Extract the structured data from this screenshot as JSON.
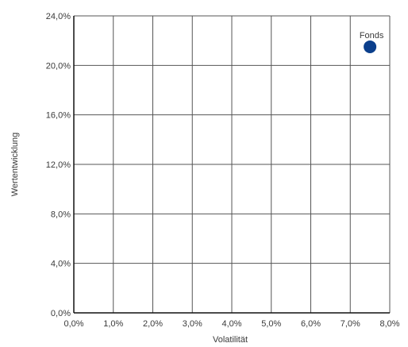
{
  "chart_data": {
    "type": "scatter",
    "title": "",
    "xlabel": "Volatilität",
    "ylabel": "Wertentwicklung",
    "xlim": [
      0,
      8
    ],
    "ylim": [
      0,
      24
    ],
    "x_ticks": [
      0,
      1,
      2,
      3,
      4,
      5,
      6,
      7,
      8
    ],
    "y_ticks": [
      0,
      4,
      8,
      12,
      16,
      20,
      24
    ],
    "x_tick_labels": [
      "0,0%",
      "1,0%",
      "2,0%",
      "3,0%",
      "4,0%",
      "5,0%",
      "6,0%",
      "7,0%",
      "8,0%"
    ],
    "y_tick_labels": [
      "0,0%",
      "4,0%",
      "8,0%",
      "12,0%",
      "16,0%",
      "20,0%",
      "24,0%"
    ],
    "grid": true,
    "points": [
      {
        "label": "Fonds",
        "x": 7.5,
        "y": 21.5,
        "color": "#0b3f8c"
      }
    ]
  }
}
